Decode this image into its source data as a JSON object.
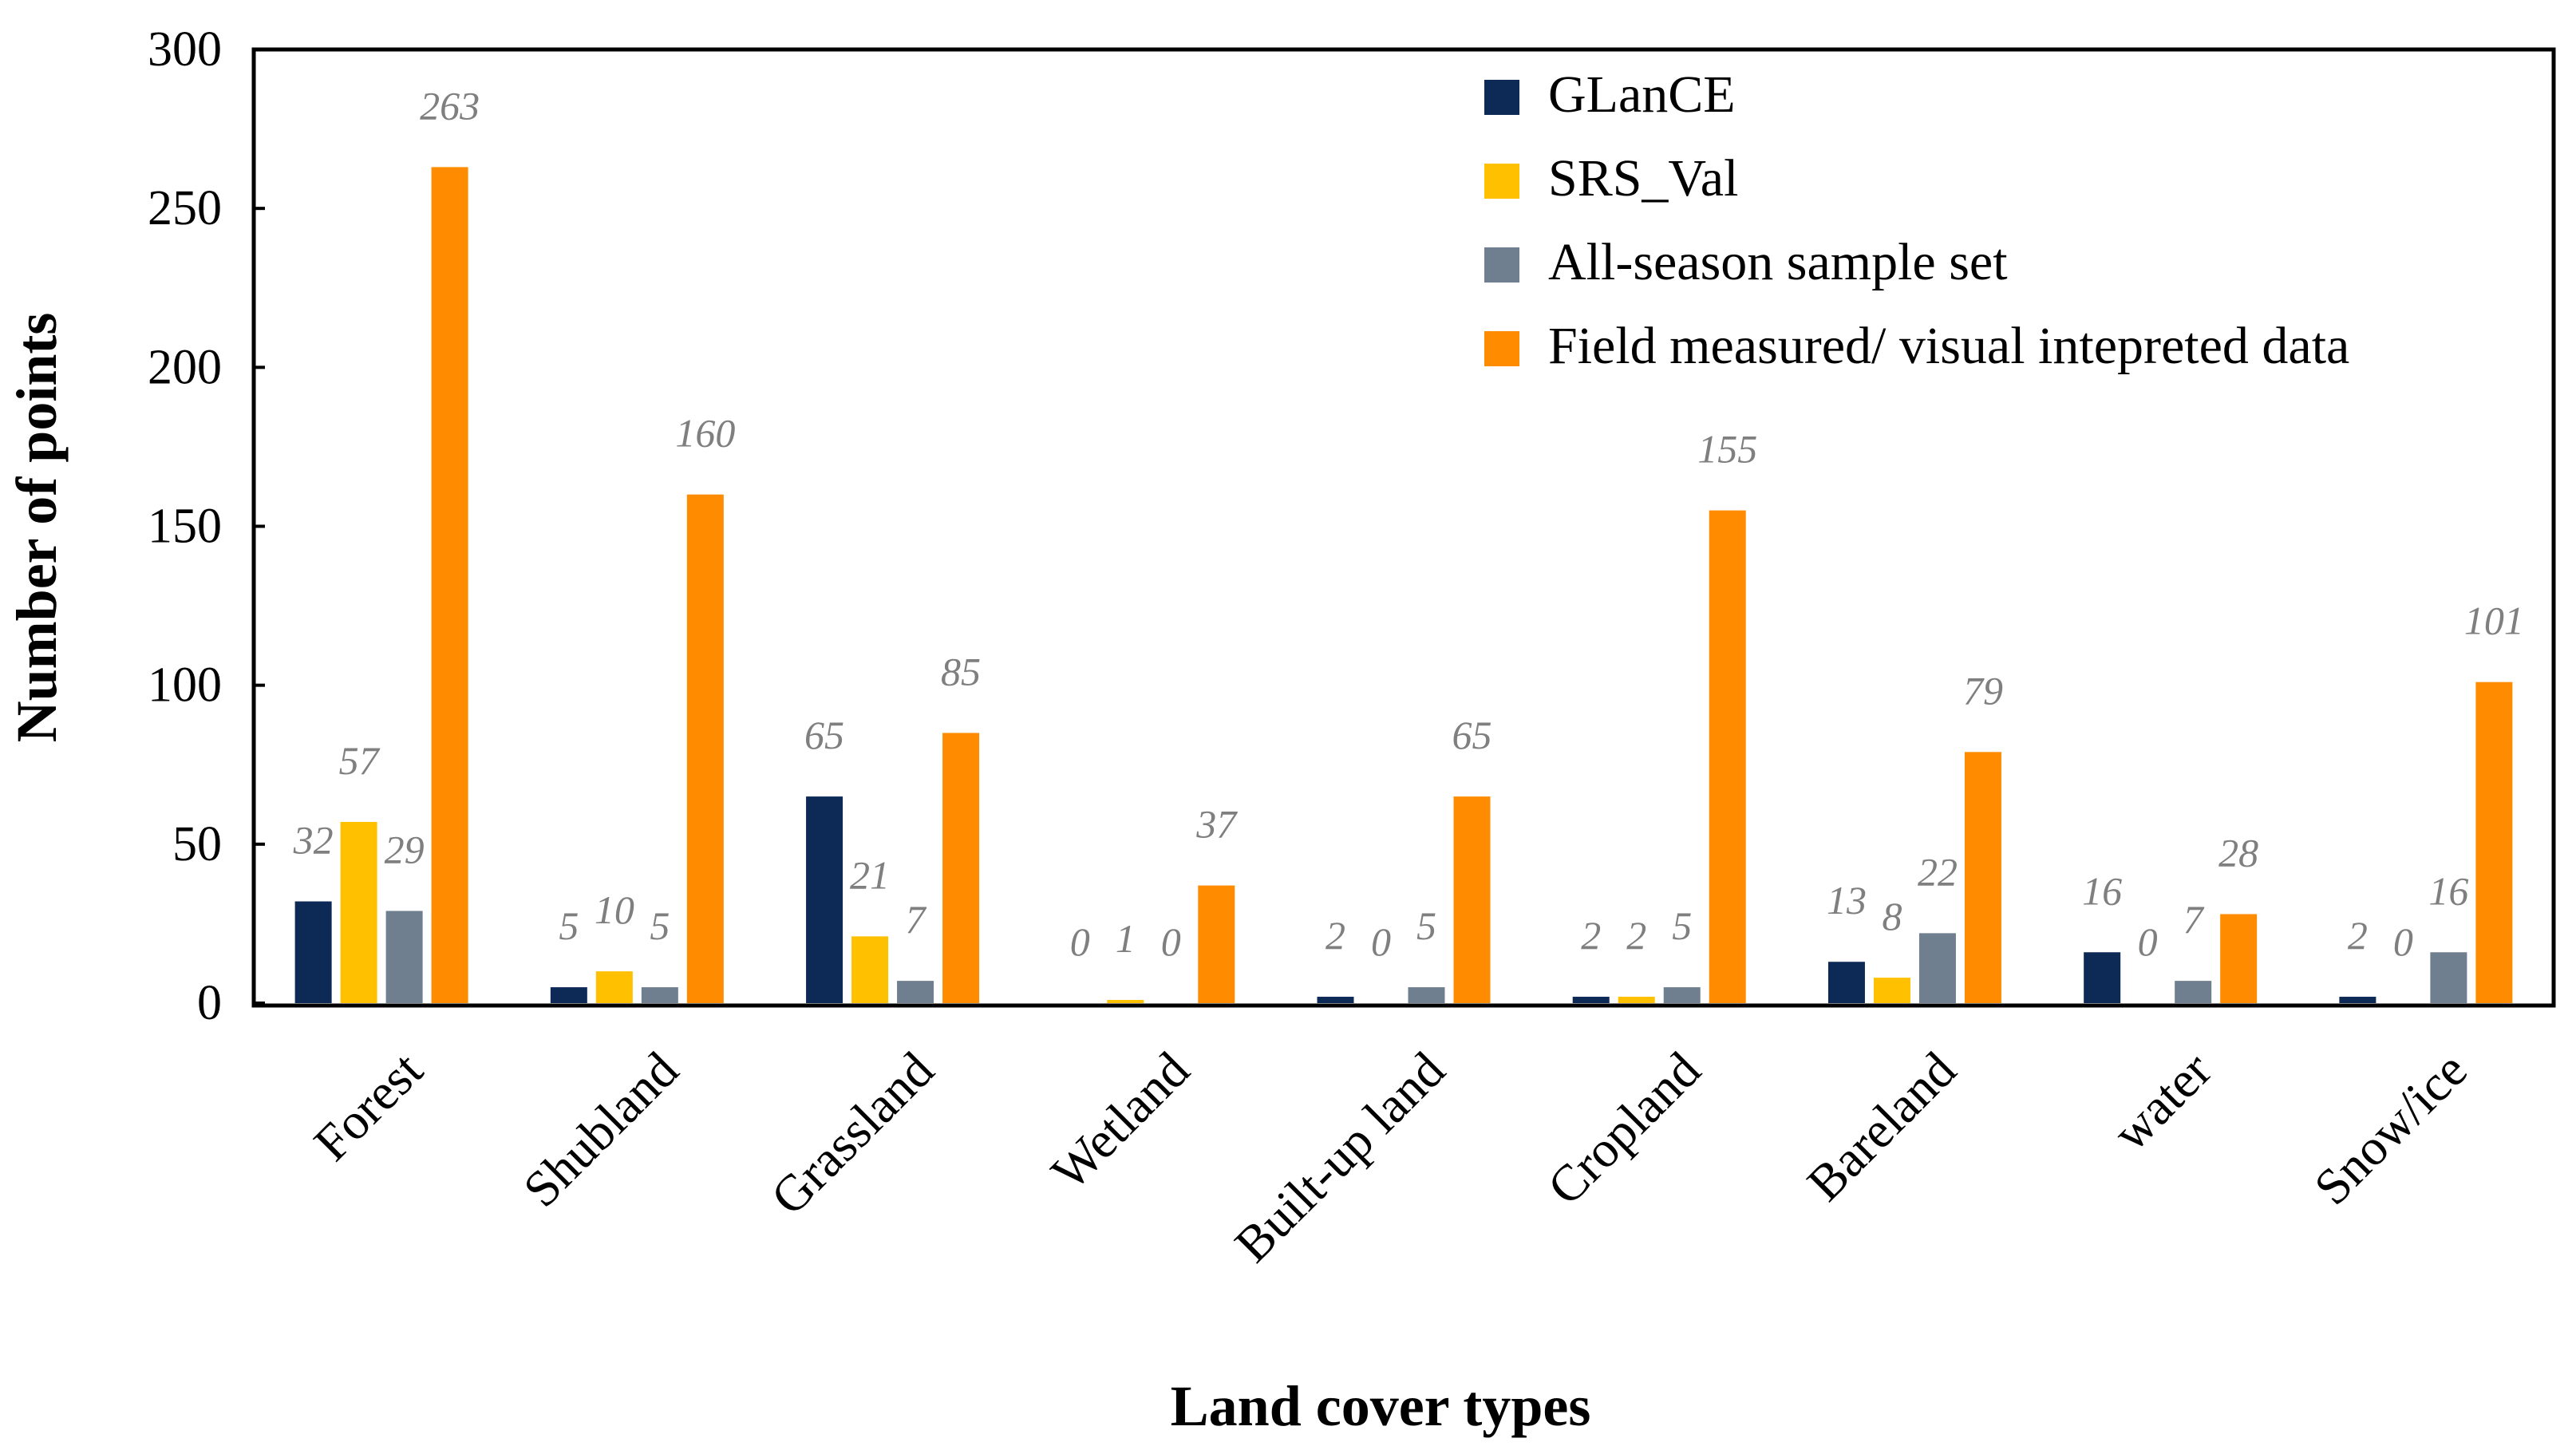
{
  "chart_data": {
    "type": "bar",
    "title": "",
    "xlabel": "Land cover types",
    "ylabel": "Number of points",
    "ylim": [
      0,
      300
    ],
    "yticks": [
      0,
      50,
      100,
      150,
      200,
      250,
      300
    ],
    "grid": false,
    "legend_position": "top-right",
    "categories": [
      "Forest",
      "Shubland",
      "Grassland",
      "Wetland",
      "Built-up land",
      "Cropland",
      "Bareland",
      "water",
      "Snow/ice"
    ],
    "series": [
      {
        "name": "GLanCE",
        "color": "#0d2a57",
        "values": [
          32,
          5,
          65,
          0,
          2,
          2,
          13,
          16,
          2
        ]
      },
      {
        "name": "SRS_Val",
        "color": "#ffc000",
        "values": [
          57,
          10,
          21,
          1,
          0,
          2,
          8,
          0,
          0
        ]
      },
      {
        "name": "All-season sample set",
        "color": "#6f7f8f",
        "values": [
          29,
          5,
          7,
          0,
          5,
          5,
          22,
          7,
          16
        ]
      },
      {
        "name": "Field measured/ visual intepreted data",
        "color": "#ff8c00",
        "values": [
          263,
          160,
          85,
          37,
          65,
          155,
          79,
          28,
          101
        ]
      }
    ]
  }
}
